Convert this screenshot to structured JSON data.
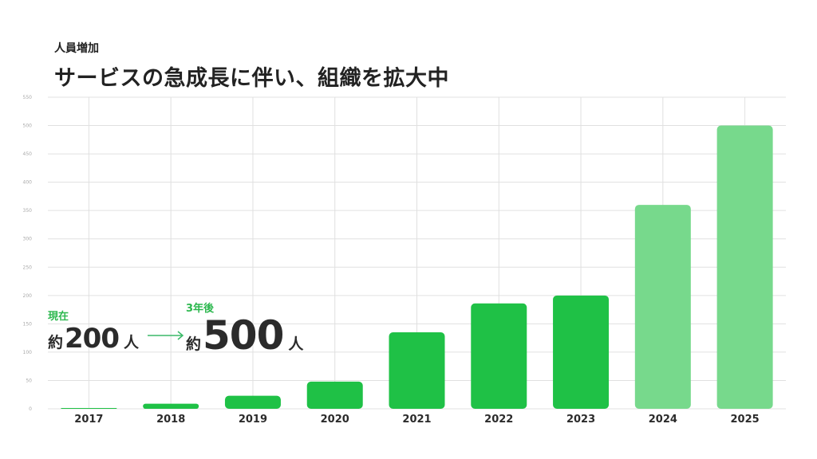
{
  "header": {
    "subtitle": "人員増加",
    "title": "サービスの急成長に伴い、組織を拡大中"
  },
  "annotation": {
    "current_label": "現在",
    "current_prefix": "約",
    "current_value": "200",
    "current_unit": "人",
    "future_label": "3年後",
    "future_prefix": "約",
    "future_value": "500",
    "future_unit": "人"
  },
  "colors": {
    "actual": "#1fc146",
    "projected": "#77d98c",
    "arrow": "#3bb968",
    "grid": "#e0e0e0",
    "tick": "#aaaaaa",
    "category_label": "#2b2b2b"
  },
  "chart_data": {
    "type": "bar",
    "categories": [
      "2017",
      "2018",
      "2019",
      "2020",
      "2021",
      "2022",
      "2023",
      "2024",
      "2025"
    ],
    "values": [
      1,
      9,
      23,
      48,
      135,
      186,
      200,
      360,
      500
    ],
    "projected": [
      false,
      false,
      false,
      false,
      false,
      false,
      false,
      true,
      true
    ],
    "ylim": [
      0,
      550
    ],
    "yticks": [
      0,
      50,
      100,
      150,
      200,
      250,
      300,
      350,
      400,
      450,
      500,
      550
    ],
    "grid": true,
    "legend": "none"
  }
}
